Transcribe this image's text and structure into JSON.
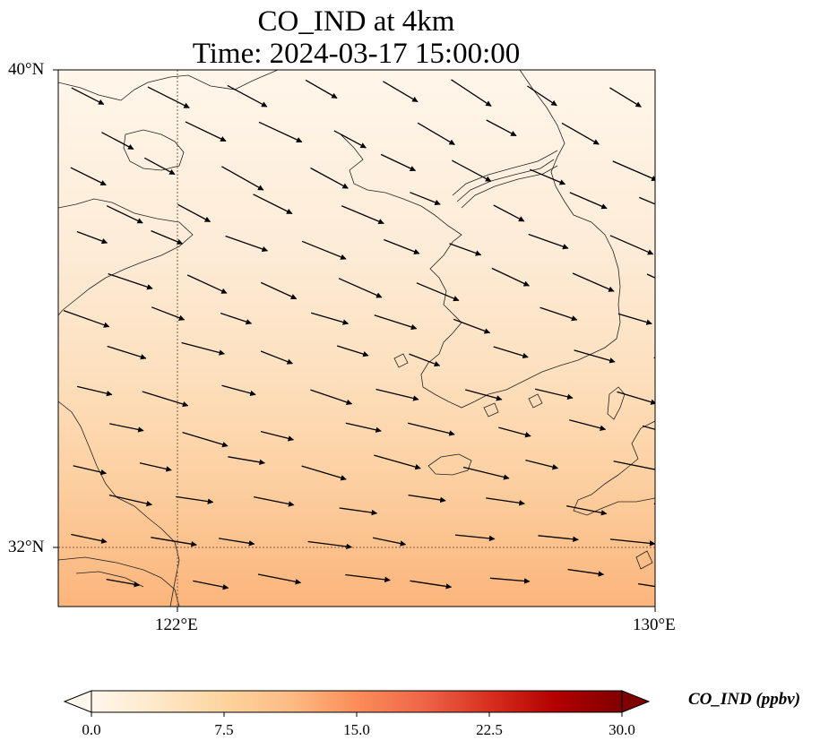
{
  "title": "CO_IND at 4km",
  "subtitle": "Time: 2024-03-17 15:00:00",
  "map": {
    "lon_range": [
      119,
      134
    ],
    "lat_range": [
      30.7,
      40
    ],
    "y_ticks": [
      {
        "label": "40°N",
        "value": 40
      },
      {
        "label": "32°N",
        "value": 32
      }
    ],
    "x_ticks": [
      {
        "label": "122°E",
        "value": 122
      },
      {
        "label": "130°E",
        "value": 130
      }
    ],
    "gridlines": [
      "122°E",
      "32°N"
    ],
    "field": "CO_IND concentration, light in north rising to orange in south",
    "wind_vectors": "northwesterly, pointing to the southeast"
  },
  "colorbar": {
    "label": "CO_IND (ppbv)",
    "min": 0.0,
    "max": 30.0,
    "ticks": [
      "0.0",
      "7.5",
      "15.0",
      "22.5",
      "30.0"
    ],
    "colormap": "OrRd",
    "extend": "both",
    "colors": [
      "#fff7ec",
      "#fee8c8",
      "#fdd49e",
      "#fdbb84",
      "#fc8d59",
      "#ef6548",
      "#d7301f",
      "#b30000",
      "#7f0000"
    ]
  }
}
